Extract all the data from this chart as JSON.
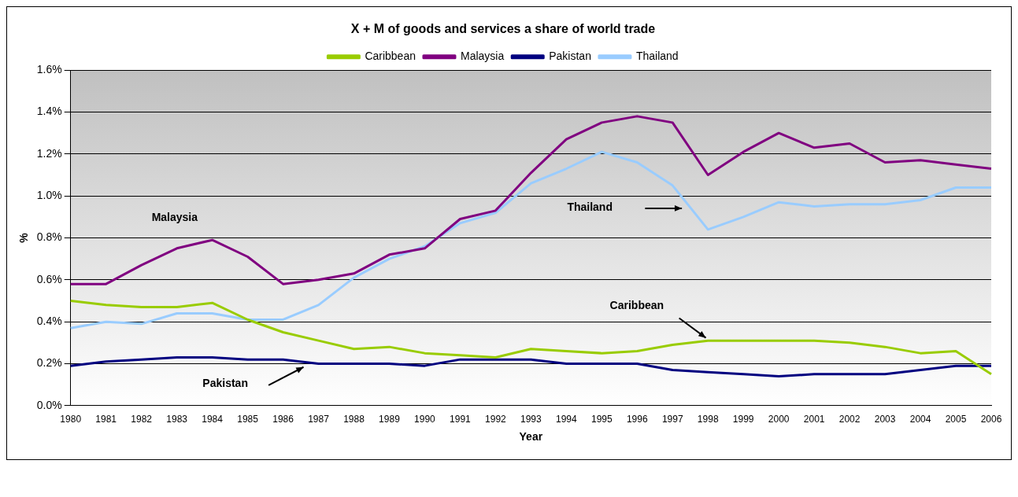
{
  "chart_data": {
    "type": "line",
    "title": "X + M of goods and services a share of world trade",
    "xlabel": "Year",
    "ylabel": "%",
    "categories": [
      "1980",
      "1981",
      "1982",
      "1983",
      "1984",
      "1985",
      "1986",
      "1987",
      "1988",
      "1989",
      "1990",
      "1991",
      "1992",
      "1993",
      "1994",
      "1995",
      "1996",
      "1997",
      "1998",
      "1999",
      "2000",
      "2001",
      "2002",
      "2003",
      "2004",
      "2005",
      "2006"
    ],
    "series": [
      {
        "name": "Caribbean",
        "color": "#99cc00",
        "values": [
          0.5,
          0.48,
          0.47,
          0.47,
          0.49,
          0.41,
          0.35,
          0.31,
          0.27,
          0.28,
          0.25,
          0.24,
          0.23,
          0.27,
          0.26,
          0.25,
          0.26,
          0.29,
          0.31,
          0.31,
          0.31,
          0.31,
          0.3,
          0.28,
          0.25,
          0.26,
          0.15
        ]
      },
      {
        "name": "Malaysia",
        "color": "#800080",
        "values": [
          0.58,
          0.58,
          0.67,
          0.75,
          0.79,
          0.71,
          0.58,
          0.6,
          0.63,
          0.72,
          0.75,
          0.89,
          0.93,
          1.11,
          1.27,
          1.35,
          1.38,
          1.35,
          1.1,
          1.21,
          1.3,
          1.23,
          1.25,
          1.16,
          1.17,
          1.15,
          1.13
        ]
      },
      {
        "name": "Pakistan",
        "color": "#000080",
        "values": [
          0.19,
          0.21,
          0.22,
          0.23,
          0.23,
          0.22,
          0.22,
          0.2,
          0.2,
          0.2,
          0.19,
          0.22,
          0.22,
          0.22,
          0.2,
          0.2,
          0.2,
          0.17,
          0.16,
          0.15,
          0.14,
          0.15,
          0.15,
          0.15,
          0.17,
          0.19,
          0.19
        ]
      },
      {
        "name": "Thailand",
        "color": "#99ccff",
        "values": [
          0.37,
          0.4,
          0.39,
          0.44,
          0.44,
          0.41,
          0.41,
          0.48,
          0.61,
          0.7,
          0.76,
          0.87,
          0.92,
          1.06,
          1.13,
          1.21,
          1.16,
          1.05,
          0.84,
          0.9,
          0.97,
          0.95,
          0.96,
          0.96,
          0.98,
          1.04,
          1.04
        ]
      }
    ],
    "ylim": [
      0,
      1.6
    ],
    "yticks": [
      {
        "value": 0,
        "label": "0.0%"
      },
      {
        "value": 0.2,
        "label": "0.2%"
      },
      {
        "value": 0.4,
        "label": "0.4%"
      },
      {
        "value": 0.6,
        "label": "0.6%"
      },
      {
        "value": 0.8,
        "label": "0.8%"
      },
      {
        "value": 1.0,
        "label": "1.0%"
      },
      {
        "value": 1.2,
        "label": "1.2%"
      },
      {
        "value": 1.4,
        "label": "1.4%"
      },
      {
        "value": 1.6,
        "label": "1.6%"
      }
    ],
    "grid": "y",
    "legend": "top",
    "marker": "none",
    "line_style": "solid",
    "annotations": [
      "Malaysia",
      "Thailand",
      "Caribbean",
      "Pakistan"
    ]
  }
}
